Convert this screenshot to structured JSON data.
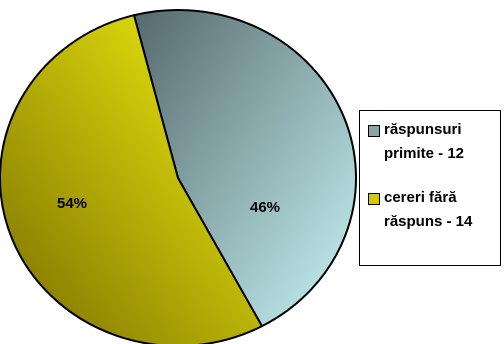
{
  "chart_data": {
    "type": "pie",
    "title": "",
    "start_angle_deg": -14.3,
    "series": [
      {
        "name": "răspunsuri primite - 12",
        "value": 12,
        "label": "46%",
        "color_light": "#c8f5f7",
        "color_dark": "#55696b"
      },
      {
        "name": "cereri fără răspuns - 14",
        "value": 14,
        "label": "54%",
        "color_light": "#f5f50f",
        "color_dark": "#7a6d00"
      }
    ],
    "legend": {
      "placement": "right",
      "items": [
        {
          "text_line1": "răspunsuri",
          "text_line2": "primite - 12",
          "color": "#88a5a7"
        },
        {
          "text_line1": "cereri fără",
          "text_line2": "răspuns - 14",
          "color": "#d4c800"
        }
      ]
    }
  }
}
